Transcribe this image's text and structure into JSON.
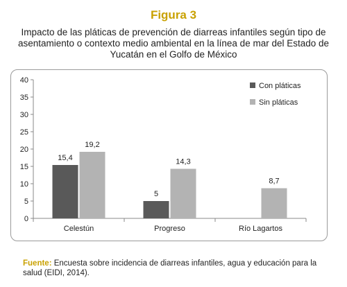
{
  "figure": {
    "label": "Figura 3",
    "title": "Impacto de las pláticas de prevención de diarreas infantiles según tipo de asentamiento o contexto medio ambiental en la línea de mar del Estado de Yucatán en el Golfo de México"
  },
  "source": {
    "label": "Fuente:",
    "text": "Encuesta sobre incidencia de diarreas infantiles, agua y educación para la salud (EIDI, 2014)."
  },
  "colors": {
    "accent": "#c9a100",
    "series_con": "#595959",
    "series_sin": "#b3b3b3"
  },
  "chart_data": {
    "type": "bar",
    "categories": [
      "Celestún",
      "Progreso",
      "Río Lagartos"
    ],
    "series": [
      {
        "name": "Con pláticas",
        "values": [
          15.4,
          5,
          null
        ],
        "labels": [
          "15,4",
          "5",
          ""
        ]
      },
      {
        "name": "Sin pláticas",
        "values": [
          19.2,
          14.3,
          8.7
        ],
        "labels": [
          "19,2",
          "14,3",
          "8,7"
        ]
      }
    ],
    "ylim": [
      0,
      40
    ],
    "yticks": [
      0,
      5,
      10,
      15,
      20,
      25,
      30,
      35,
      40
    ],
    "grid": false,
    "legend_position": "top-right"
  }
}
